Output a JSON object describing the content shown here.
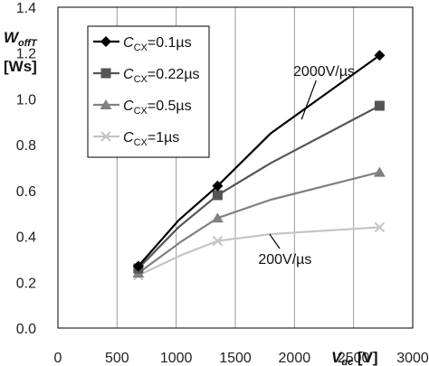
{
  "chart_data": {
    "type": "line",
    "x_tick_labels": [
      "0",
      "500",
      "1000",
      "1500",
      "2000",
      "2500",
      "3000"
    ],
    "y_tick_labels": [
      "0.0",
      "0.2",
      "0.4",
      "0.6",
      "0.8",
      "1.0",
      "1.2",
      "1.4"
    ],
    "xlim": [
      0,
      3000
    ],
    "ylim": [
      0,
      1.4
    ],
    "x_ticks": [
      0,
      500,
      1000,
      1500,
      2000,
      2500,
      3000
    ],
    "y_ticks": [
      0,
      0.2,
      0.4,
      0.6,
      0.8,
      1.0,
      1.2,
      1.4
    ],
    "xlabel": {
      "main": "V",
      "sub": "dc",
      "unit": " [V]"
    },
    "ylabel": {
      "main": "W",
      "sub": "offT",
      "unit": "[Ws]"
    },
    "grid": "vertical",
    "legend_position": "top-left",
    "series": [
      {
        "name_main": "C",
        "name_sub": "CX",
        "name_value": "=0.1µs",
        "color": "#000000",
        "marker": "diamond",
        "x": [
          680,
          1020,
          1350,
          1800,
          2720
        ],
        "y": [
          0.27,
          0.47,
          0.62,
          0.85,
          1.19
        ],
        "markers_at": [
          680,
          1350,
          2720
        ]
      },
      {
        "name_main": "C",
        "name_sub": "CX",
        "name_value": "=0.22µs",
        "color": "#555555",
        "marker": "square",
        "x": [
          680,
          1020,
          1350,
          1800,
          2720
        ],
        "y": [
          0.26,
          0.44,
          0.58,
          0.72,
          0.97
        ],
        "markers_at": [
          680,
          1350,
          2720
        ]
      },
      {
        "name_main": "C",
        "name_sub": "CX",
        "name_value": "=0.5µs",
        "color": "#808080",
        "marker": "triangle",
        "x": [
          680,
          1050,
          1350,
          1800,
          2720
        ],
        "y": [
          0.24,
          0.38,
          0.48,
          0.56,
          0.68
        ],
        "markers_at": [
          680,
          1350,
          2720
        ]
      },
      {
        "name_main": "C",
        "name_sub": "CX",
        "name_value": "=1µs",
        "color": "#c4c4c4",
        "marker": "x",
        "x": [
          680,
          1050,
          1350,
          1800,
          2720
        ],
        "y": [
          0.23,
          0.32,
          0.38,
          0.41,
          0.44
        ],
        "markers_at": [
          680,
          1350,
          2720
        ]
      }
    ],
    "annotations": [
      {
        "text": "2000V/µs",
        "x": 2250,
        "y": 1.1,
        "arrow_to": [
          2060,
          0.91
        ]
      },
      {
        "text": "200V/µs",
        "x": 1920,
        "y": 0.28,
        "arrow_to": [
          1790,
          0.41
        ]
      }
    ]
  }
}
